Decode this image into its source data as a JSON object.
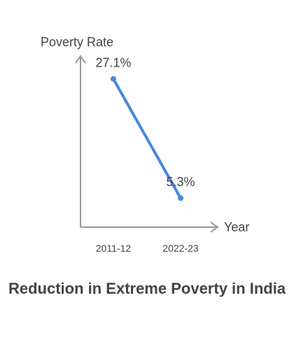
{
  "chart_data": {
    "type": "line",
    "title": "Reduction in Extreme Poverty in India",
    "xlabel": "Year",
    "ylabel": "Poverty Rate",
    "categories": [
      "2011-12",
      "2022-23"
    ],
    "series": [
      {
        "values": [
          27.1,
          5.3
        ],
        "data_labels": [
          "27.1%",
          "5.3%"
        ]
      }
    ],
    "ylim": [
      0,
      30
    ],
    "grid": false,
    "legend": "none",
    "colors": {
      "line": "#4a86e0",
      "axis": "#9a9a9a",
      "text": "#444444"
    }
  }
}
